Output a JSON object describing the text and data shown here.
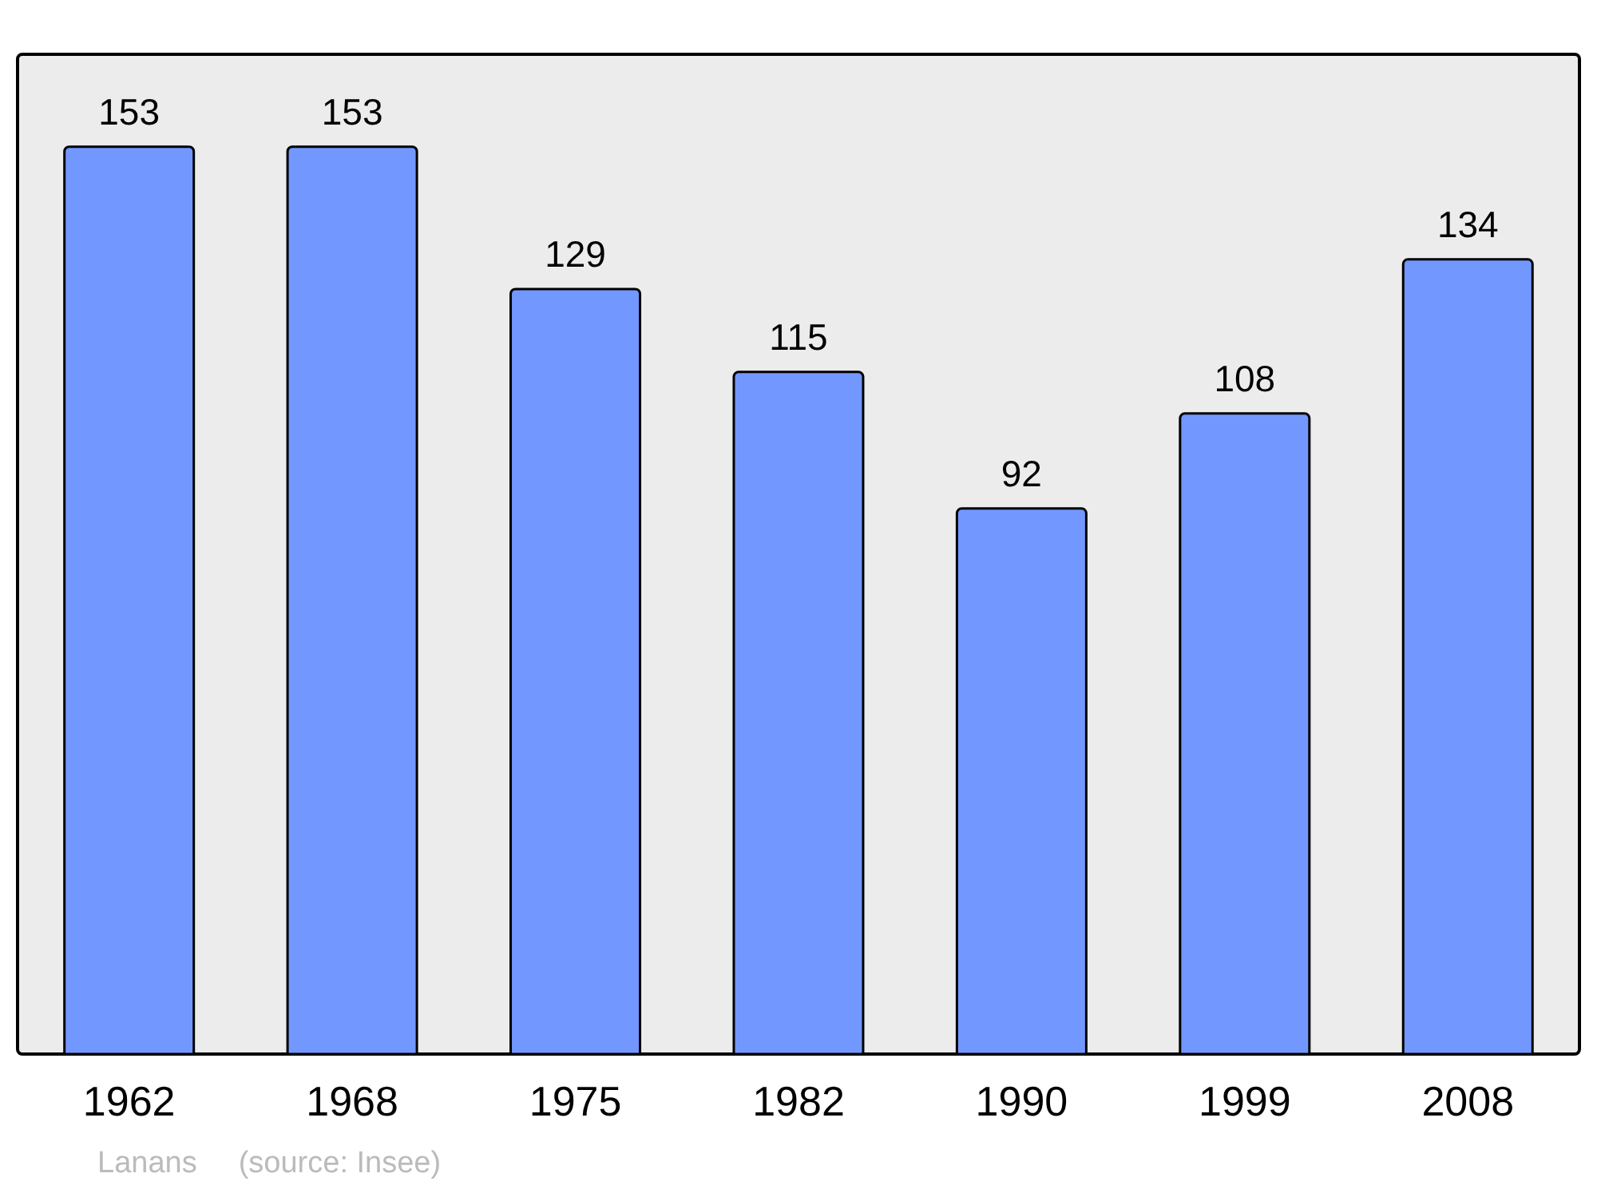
{
  "chart_data": {
    "type": "bar",
    "categories": [
      "1962",
      "1968",
      "1975",
      "1982",
      "1990",
      "1999",
      "2008"
    ],
    "values": [
      153,
      153,
      129,
      115,
      92,
      108,
      134
    ],
    "color": "#7298ff",
    "data_labels": true,
    "annotations": [
      "Lanans",
      "(source: Insee)"
    ]
  }
}
